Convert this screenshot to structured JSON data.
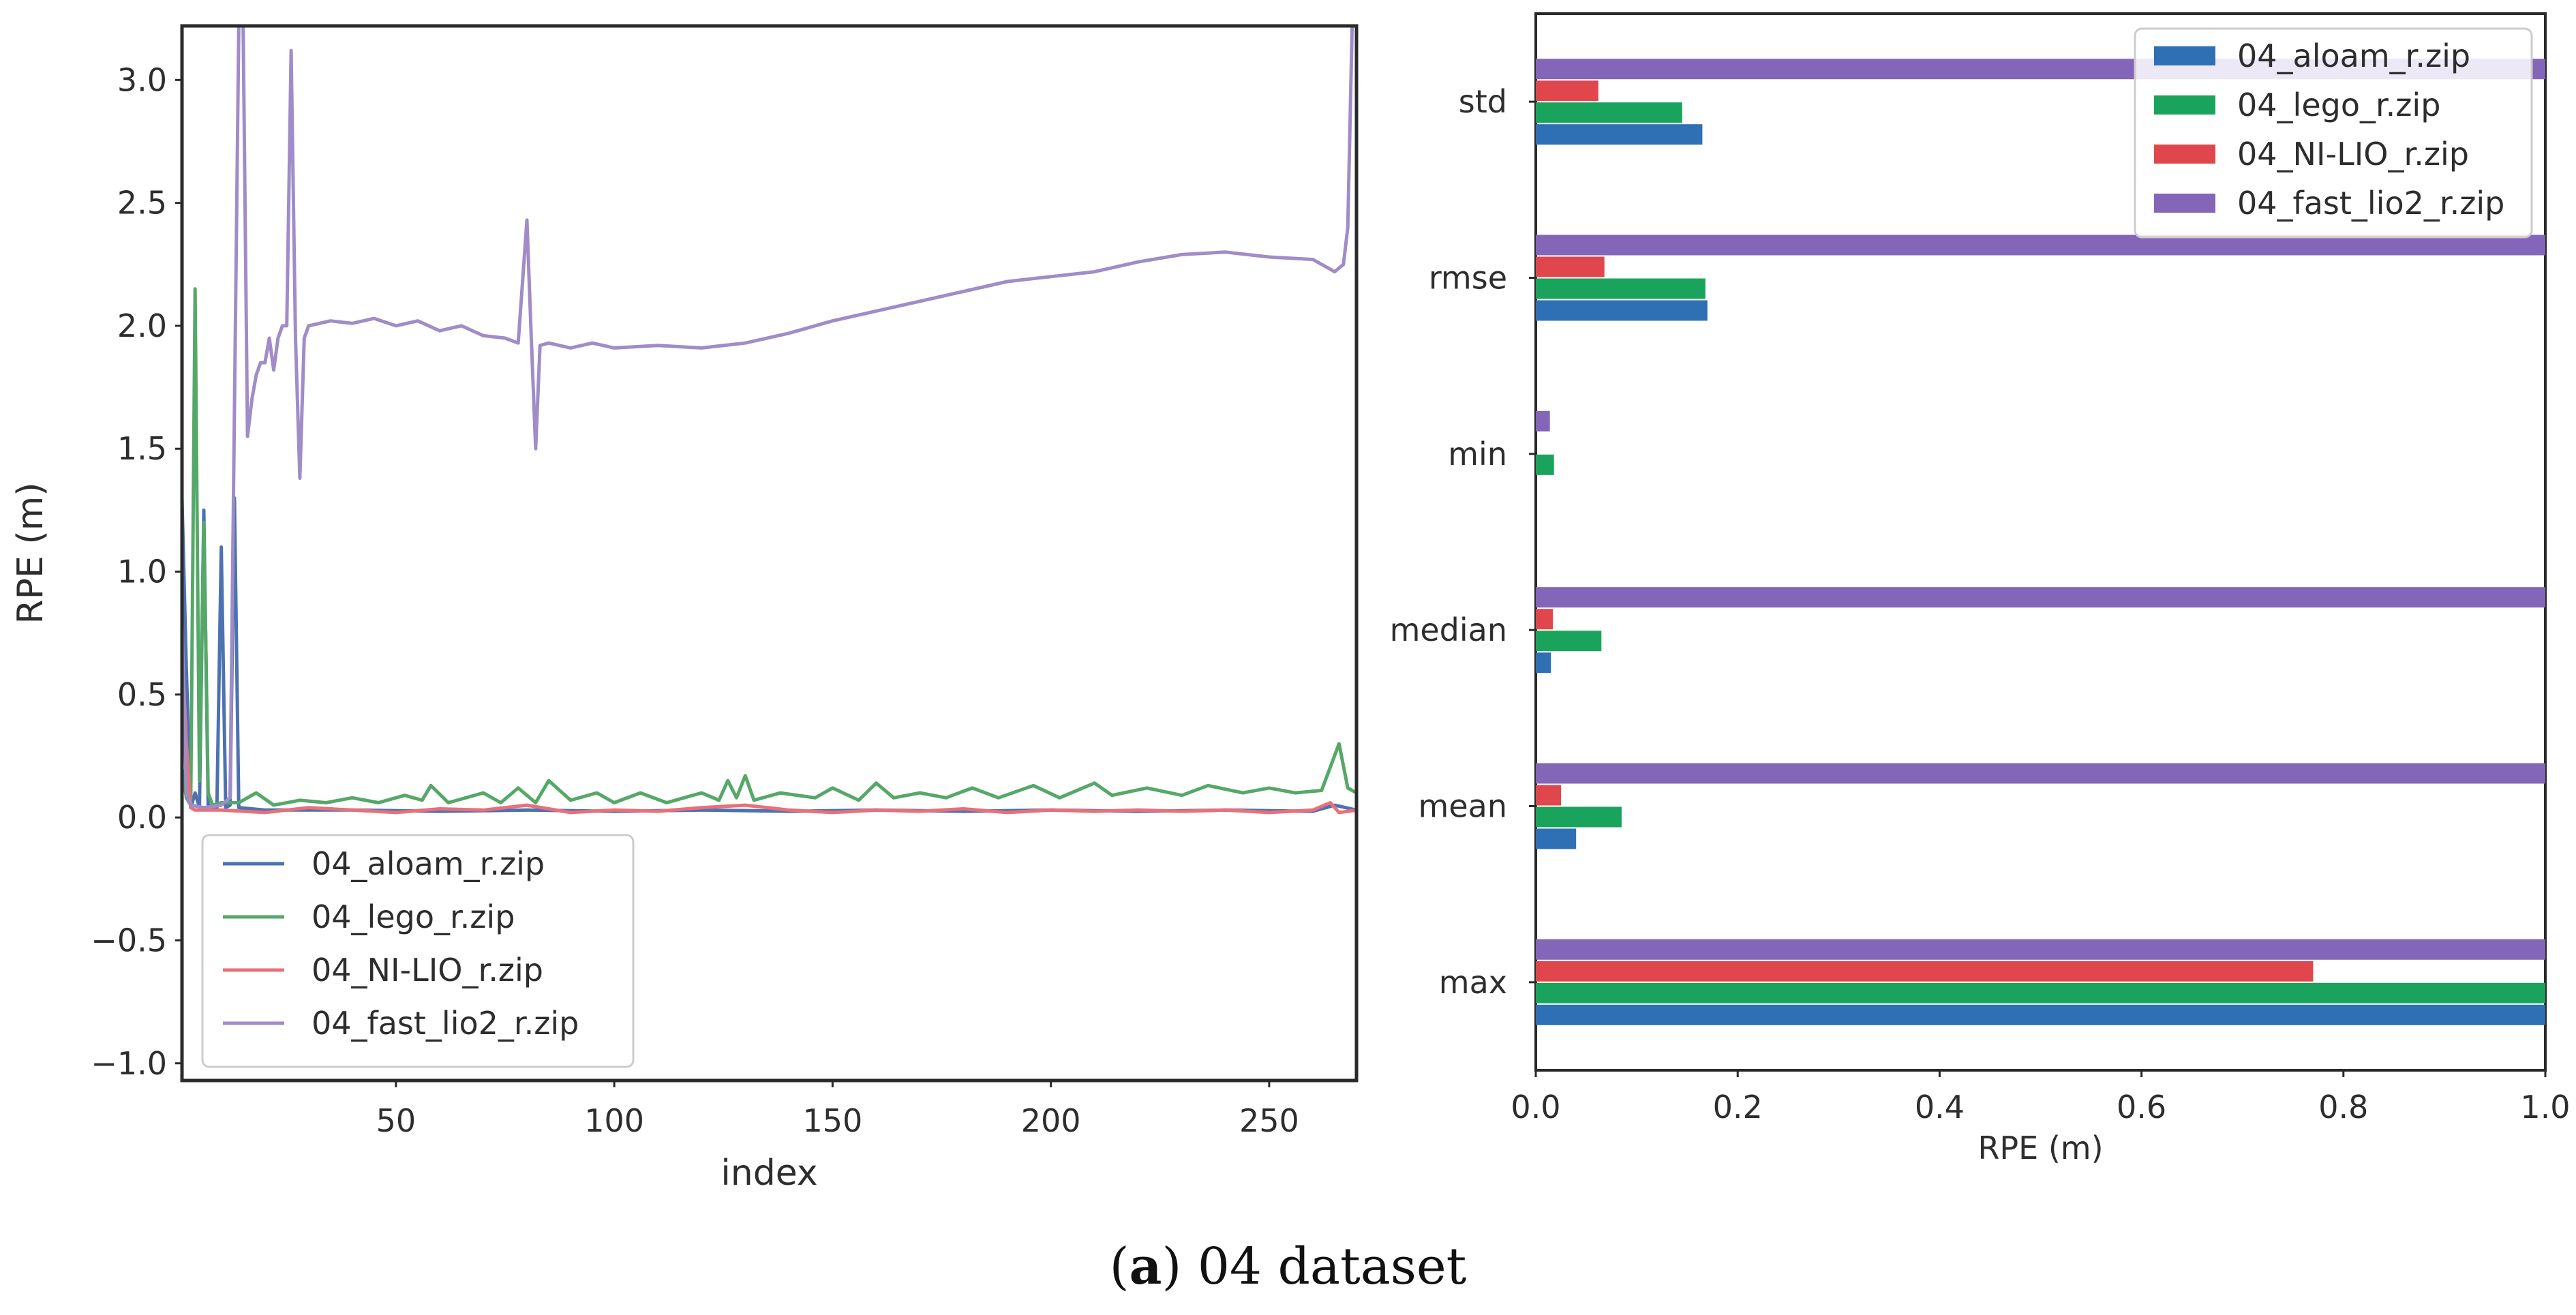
{
  "caption": {
    "letter": "a",
    "open": "(",
    "close": ")",
    "text": " 04 dataset"
  },
  "chart_data": [
    {
      "type": "line",
      "xlabel": "index",
      "ylabel": "RPE (m)",
      "xlim": [
        1,
        270
      ],
      "ylim": [
        -1.07,
        3.22
      ],
      "xticks": [
        50,
        100,
        150,
        200,
        250
      ],
      "yticks": [
        -1.0,
        -0.5,
        0.0,
        0.5,
        1.0,
        1.5,
        2.0,
        2.5,
        3.0
      ],
      "ytick_labels": [
        "−1.0",
        "−0.5",
        "0.0",
        "0.5",
        "1.0",
        "1.5",
        "2.0",
        "2.5",
        "3.0"
      ],
      "legend_position": "lower-left",
      "series": [
        {
          "name": "04_aloam_r.zip",
          "color": "#4c72b0",
          "points": [
            [
              1,
              1.3
            ],
            [
              2,
              0.6
            ],
            [
              3,
              0.04
            ],
            [
              4,
              0.1
            ],
            [
              5,
              0.04
            ],
            [
              6,
              1.25
            ],
            [
              7,
              0.05
            ],
            [
              8,
              0.04
            ],
            [
              9,
              0.04
            ],
            [
              10,
              1.1
            ],
            [
              11,
              0.04
            ],
            [
              12,
              0.05
            ],
            [
              13,
              1.3
            ],
            [
              14,
              0.04
            ],
            [
              20,
              0.03
            ],
            [
              40,
              0.03
            ],
            [
              60,
              0.025
            ],
            [
              80,
              0.03
            ],
            [
              100,
              0.025
            ],
            [
              120,
              0.03
            ],
            [
              140,
              0.025
            ],
            [
              160,
              0.03
            ],
            [
              180,
              0.025
            ],
            [
              200,
              0.03
            ],
            [
              220,
              0.025
            ],
            [
              240,
              0.03
            ],
            [
              260,
              0.025
            ],
            [
              265,
              0.05
            ],
            [
              270,
              0.03
            ]
          ]
        },
        {
          "name": "04_lego_r.zip",
          "color": "#55a868",
          "points": [
            [
              1,
              0.2
            ],
            [
              2,
              0.08
            ],
            [
              3,
              0.05
            ],
            [
              4,
              2.15
            ],
            [
              5,
              0.15
            ],
            [
              6,
              1.2
            ],
            [
              7,
              0.1
            ],
            [
              8,
              0.05
            ],
            [
              10,
              0.06
            ],
            [
              14,
              0.06
            ],
            [
              18,
              0.1
            ],
            [
              22,
              0.05
            ],
            [
              28,
              0.07
            ],
            [
              34,
              0.06
            ],
            [
              40,
              0.08
            ],
            [
              46,
              0.06
            ],
            [
              52,
              0.09
            ],
            [
              56,
              0.07
            ],
            [
              58,
              0.13
            ],
            [
              62,
              0.06
            ],
            [
              70,
              0.1
            ],
            [
              74,
              0.06
            ],
            [
              78,
              0.12
            ],
            [
              82,
              0.06
            ],
            [
              85,
              0.15
            ],
            [
              90,
              0.07
            ],
            [
              96,
              0.1
            ],
            [
              100,
              0.06
            ],
            [
              106,
              0.1
            ],
            [
              112,
              0.06
            ],
            [
              120,
              0.1
            ],
            [
              124,
              0.07
            ],
            [
              126,
              0.15
            ],
            [
              128,
              0.08
            ],
            [
              130,
              0.17
            ],
            [
              132,
              0.07
            ],
            [
              138,
              0.1
            ],
            [
              146,
              0.08
            ],
            [
              150,
              0.12
            ],
            [
              156,
              0.07
            ],
            [
              160,
              0.14
            ],
            [
              164,
              0.08
            ],
            [
              170,
              0.1
            ],
            [
              176,
              0.08
            ],
            [
              182,
              0.12
            ],
            [
              188,
              0.08
            ],
            [
              196,
              0.13
            ],
            [
              202,
              0.08
            ],
            [
              210,
              0.14
            ],
            [
              214,
              0.09
            ],
            [
              222,
              0.12
            ],
            [
              230,
              0.09
            ],
            [
              236,
              0.13
            ],
            [
              244,
              0.1
            ],
            [
              250,
              0.12
            ],
            [
              256,
              0.1
            ],
            [
              262,
              0.11
            ],
            [
              266,
              0.3
            ],
            [
              268,
              0.12
            ],
            [
              270,
              0.1
            ]
          ]
        },
        {
          "name": "04_NI-LIO_r.zip",
          "color": "#e8707a",
          "points": [
            [
              1,
              0.69
            ],
            [
              2,
              0.3
            ],
            [
              3,
              0.04
            ],
            [
              4,
              0.03
            ],
            [
              10,
              0.03
            ],
            [
              20,
              0.02
            ],
            [
              30,
              0.04
            ],
            [
              40,
              0.03
            ],
            [
              50,
              0.02
            ],
            [
              60,
              0.035
            ],
            [
              70,
              0.03
            ],
            [
              80,
              0.05
            ],
            [
              90,
              0.02
            ],
            [
              100,
              0.03
            ],
            [
              110,
              0.025
            ],
            [
              120,
              0.04
            ],
            [
              130,
              0.05
            ],
            [
              140,
              0.03
            ],
            [
              150,
              0.02
            ],
            [
              160,
              0.03
            ],
            [
              170,
              0.025
            ],
            [
              180,
              0.035
            ],
            [
              190,
              0.02
            ],
            [
              200,
              0.03
            ],
            [
              210,
              0.025
            ],
            [
              220,
              0.03
            ],
            [
              230,
              0.025
            ],
            [
              240,
              0.03
            ],
            [
              250,
              0.02
            ],
            [
              260,
              0.03
            ],
            [
              264,
              0.06
            ],
            [
              266,
              0.02
            ],
            [
              270,
              0.03
            ]
          ]
        },
        {
          "name": "04_fast_lio2_r.zip",
          "color": "#a08cc8",
          "points": [
            [
              1,
              0.8
            ],
            [
              2,
              0.1
            ],
            [
              3,
              0.05
            ],
            [
              6,
              0.04
            ],
            [
              10,
              0.05
            ],
            [
              12,
              0.08
            ],
            [
              14,
              3.22
            ],
            [
              15,
              3.22
            ],
            [
              16,
              1.55
            ],
            [
              17,
              1.7
            ],
            [
              18,
              1.8
            ],
            [
              19,
              1.85
            ],
            [
              20,
              1.85
            ],
            [
              21,
              1.95
            ],
            [
              22,
              1.82
            ],
            [
              23,
              1.95
            ],
            [
              24,
              2.0
            ],
            [
              25,
              2.0
            ],
            [
              26,
              3.12
            ],
            [
              27,
              1.95
            ],
            [
              28,
              1.38
            ],
            [
              29,
              1.95
            ],
            [
              30,
              2.0
            ],
            [
              35,
              2.02
            ],
            [
              40,
              2.01
            ],
            [
              45,
              2.03
            ],
            [
              50,
              2.0
            ],
            [
              55,
              2.02
            ],
            [
              60,
              1.98
            ],
            [
              65,
              2.0
            ],
            [
              70,
              1.96
            ],
            [
              75,
              1.95
            ],
            [
              78,
              1.93
            ],
            [
              80,
              2.43
            ],
            [
              81,
              1.95
            ],
            [
              82,
              1.5
            ],
            [
              83,
              1.92
            ],
            [
              85,
              1.93
            ],
            [
              90,
              1.91
            ],
            [
              95,
              1.93
            ],
            [
              100,
              1.91
            ],
            [
              110,
              1.92
            ],
            [
              120,
              1.91
            ],
            [
              130,
              1.93
            ],
            [
              140,
              1.97
            ],
            [
              150,
              2.02
            ],
            [
              160,
              2.06
            ],
            [
              170,
              2.1
            ],
            [
              180,
              2.14
            ],
            [
              190,
              2.18
            ],
            [
              200,
              2.2
            ],
            [
              210,
              2.22
            ],
            [
              220,
              2.26
            ],
            [
              230,
              2.29
            ],
            [
              240,
              2.3
            ],
            [
              250,
              2.28
            ],
            [
              260,
              2.27
            ],
            [
              265,
              2.22
            ],
            [
              267,
              2.25
            ],
            [
              268,
              2.4
            ],
            [
              269,
              3.22
            ],
            [
              270,
              3.22
            ]
          ]
        }
      ]
    },
    {
      "type": "bar",
      "orientation": "horizontal",
      "xlabel": "RPE (m)",
      "xlim": [
        0.0,
        1.0
      ],
      "xticks": [
        "0.0",
        "0.2",
        "0.4",
        "0.6",
        "0.8",
        "1.0"
      ],
      "categories": [
        "std",
        "rmse",
        "min",
        "median",
        "mean",
        "max"
      ],
      "legend_position": "top-right",
      "series": [
        {
          "name": "04_aloam_r.zip",
          "color": "#2f6fb3",
          "values": [
            0.165,
            0.17,
            0.0,
            0.015,
            0.04,
            1.0
          ]
        },
        {
          "name": "04_lego_r.zip",
          "color": "#1aa35c",
          "values": [
            0.145,
            0.168,
            0.018,
            0.065,
            0.085,
            1.0
          ]
        },
        {
          "name": "04_NI-LIO_r.zip",
          "color": "#e0474c",
          "values": [
            0.062,
            0.068,
            0.0,
            0.017,
            0.025,
            0.77
          ]
        },
        {
          "name": "04_fast_lio2_r.zip",
          "color": "#8466b8",
          "values": [
            1.0,
            1.0,
            0.014,
            1.0,
            1.0,
            1.0
          ]
        }
      ]
    }
  ]
}
